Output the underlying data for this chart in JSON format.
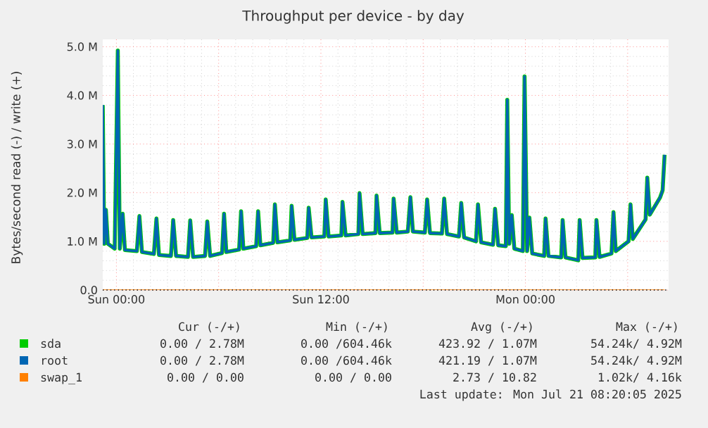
{
  "chart_data": {
    "type": "line",
    "title": "Throughput per device - by day",
    "ylabel": "Bytes/second read (-) / write (+)",
    "xlim": [
      "2025-07-19T23:12",
      "2025-07-21T08:24"
    ],
    "ylim": [
      0,
      5.15
    ],
    "xticks": [
      {
        "value": "2025-07-20T00:00",
        "label": "Sun 00:00"
      },
      {
        "value": "2025-07-20T06:00",
        "label": null
      },
      {
        "value": "2025-07-20T12:00",
        "label": "Sun 12:00"
      },
      {
        "value": "2025-07-20T18:00",
        "label": null
      },
      {
        "value": "2025-07-21T00:00",
        "label": "Mon 00:00"
      },
      {
        "value": "2025-07-21T06:00",
        "label": null
      }
    ],
    "yticks": [
      {
        "value": 0,
        "label": "0.0"
      },
      {
        "value": 1,
        "label": "1.0 M"
      },
      {
        "value": 2,
        "label": "2.0 M"
      },
      {
        "value": 3,
        "label": "3.0 M"
      },
      {
        "value": 4,
        "label": "4.0 M"
      },
      {
        "value": 5,
        "label": "5.0 M"
      }
    ],
    "grid": true,
    "legend": "bottom",
    "x": [
      "2025-07-19T23:12",
      "2025-07-19T23:17",
      "2025-07-19T23:23",
      "2025-07-19T23:30",
      "2025-07-19T23:54",
      "2025-07-20T00:05",
      "2025-07-20T00:12",
      "2025-07-20T00:22",
      "2025-07-20T00:30",
      "2025-07-20T01:12",
      "2025-07-20T01:21",
      "2025-07-20T01:30",
      "2025-07-20T02:12",
      "2025-07-20T02:21",
      "2025-07-20T02:30",
      "2025-07-20T03:12",
      "2025-07-20T03:20",
      "2025-07-20T03:30",
      "2025-07-20T04:12",
      "2025-07-20T04:20",
      "2025-07-20T04:30",
      "2025-07-20T05:12",
      "2025-07-20T05:20",
      "2025-07-20T05:30",
      "2025-07-20T06:12",
      "2025-07-20T06:19",
      "2025-07-20T06:27",
      "2025-07-20T07:12",
      "2025-07-20T07:19",
      "2025-07-20T07:27",
      "2025-07-20T08:12",
      "2025-07-20T08:19",
      "2025-07-20T08:27",
      "2025-07-20T09:12",
      "2025-07-20T09:18",
      "2025-07-20T09:27",
      "2025-07-20T10:12",
      "2025-07-20T10:17",
      "2025-07-20T10:27",
      "2025-07-20T11:12",
      "2025-07-20T11:17",
      "2025-07-20T11:27",
      "2025-07-20T12:12",
      "2025-07-20T12:17",
      "2025-07-20T12:27",
      "2025-07-20T13:12",
      "2025-07-20T13:16",
      "2025-07-20T13:27",
      "2025-07-20T14:12",
      "2025-07-20T14:16",
      "2025-07-20T14:27",
      "2025-07-20T15:12",
      "2025-07-20T15:16",
      "2025-07-20T15:27",
      "2025-07-20T16:12",
      "2025-07-20T16:16",
      "2025-07-20T16:27",
      "2025-07-20T17:06",
      "2025-07-20T17:15",
      "2025-07-20T17:24",
      "2025-07-20T18:06",
      "2025-07-20T18:14",
      "2025-07-20T18:24",
      "2025-07-20T19:06",
      "2025-07-20T19:14",
      "2025-07-20T19:24",
      "2025-07-20T20:06",
      "2025-07-20T20:14",
      "2025-07-20T20:24",
      "2025-07-20T21:06",
      "2025-07-20T21:13",
      "2025-07-20T21:24",
      "2025-07-20T22:06",
      "2025-07-20T22:13",
      "2025-07-20T22:24",
      "2025-07-20T22:51",
      "2025-07-20T22:56",
      "2025-07-20T23:03",
      "2025-07-20T23:12",
      "2025-07-20T23:21",
      "2025-07-20T23:51",
      "2025-07-20T23:57",
      "2025-07-21T00:06",
      "2025-07-21T00:14",
      "2025-07-21T00:24",
      "2025-07-21T01:06",
      "2025-07-21T01:11",
      "2025-07-21T01:21",
      "2025-07-21T02:06",
      "2025-07-21T02:11",
      "2025-07-21T02:21",
      "2025-07-21T03:06",
      "2025-07-21T03:11",
      "2025-07-21T03:21",
      "2025-07-21T04:06",
      "2025-07-21T04:10",
      "2025-07-21T04:21",
      "2025-07-21T05:03",
      "2025-07-21T05:10",
      "2025-07-21T05:18",
      "2025-07-21T06:03",
      "2025-07-21T06:10",
      "2025-07-21T06:18",
      "2025-07-21T07:03",
      "2025-07-21T07:09",
      "2025-07-21T07:18",
      "2025-07-21T07:54",
      "2025-07-21T08:03",
      "2025-07-21T08:10"
    ],
    "series": [
      {
        "name": "sda",
        "color": "#00cc00",
        "values": [
          3.8,
          0.95,
          1.65,
          0.95,
          0.85,
          4.92,
          0.85,
          1.57,
          0.82,
          0.8,
          1.52,
          0.78,
          0.74,
          1.47,
          0.72,
          0.7,
          1.44,
          0.7,
          0.68,
          1.43,
          0.68,
          0.7,
          1.41,
          0.7,
          0.76,
          1.57,
          0.78,
          0.83,
          1.62,
          0.85,
          0.9,
          1.62,
          0.92,
          0.97,
          1.76,
          0.98,
          1.02,
          1.73,
          1.03,
          1.07,
          1.69,
          1.08,
          1.1,
          1.86,
          1.1,
          1.12,
          1.81,
          1.12,
          1.15,
          1.99,
          1.15,
          1.17,
          1.94,
          1.17,
          1.18,
          1.88,
          1.18,
          1.2,
          1.91,
          1.2,
          1.18,
          1.86,
          1.17,
          1.16,
          1.88,
          1.15,
          1.1,
          1.79,
          1.08,
          1.0,
          1.76,
          0.98,
          0.93,
          1.67,
          0.92,
          0.9,
          3.91,
          0.95,
          1.54,
          0.85,
          0.8,
          4.39,
          0.8,
          1.49,
          0.75,
          0.7,
          1.47,
          0.7,
          0.67,
          1.44,
          0.67,
          0.61,
          1.44,
          0.66,
          0.67,
          1.44,
          0.68,
          0.75,
          1.6,
          0.8,
          1.0,
          1.76,
          1.05,
          1.45,
          2.31,
          1.55,
          1.9,
          2.05,
          2.78
        ]
      },
      {
        "name": "root",
        "color": "#0066b3",
        "values": [
          3.8,
          0.95,
          1.65,
          0.95,
          0.85,
          4.92,
          0.85,
          1.57,
          0.82,
          0.8,
          1.52,
          0.78,
          0.74,
          1.47,
          0.72,
          0.7,
          1.44,
          0.7,
          0.68,
          1.43,
          0.68,
          0.7,
          1.41,
          0.7,
          0.76,
          1.57,
          0.78,
          0.83,
          1.62,
          0.85,
          0.9,
          1.62,
          0.92,
          0.97,
          1.76,
          0.98,
          1.02,
          1.73,
          1.03,
          1.07,
          1.69,
          1.08,
          1.1,
          1.86,
          1.1,
          1.12,
          1.81,
          1.12,
          1.15,
          1.99,
          1.15,
          1.17,
          1.94,
          1.17,
          1.18,
          1.88,
          1.18,
          1.2,
          1.91,
          1.2,
          1.18,
          1.86,
          1.17,
          1.16,
          1.88,
          1.15,
          1.1,
          1.79,
          1.08,
          1.0,
          1.76,
          0.98,
          0.93,
          1.67,
          0.92,
          0.9,
          3.91,
          0.95,
          1.54,
          0.85,
          0.8,
          4.39,
          0.8,
          1.49,
          0.75,
          0.7,
          1.47,
          0.7,
          0.67,
          1.44,
          0.67,
          0.61,
          1.44,
          0.66,
          0.67,
          1.44,
          0.68,
          0.75,
          1.6,
          0.8,
          1.0,
          1.76,
          1.05,
          1.45,
          2.31,
          1.55,
          1.9,
          2.05,
          2.78
        ]
      },
      {
        "name": "swap_1",
        "color": "#ff8000",
        "x": [
          "2025-07-19T23:12",
          "2025-07-21T08:10"
        ],
        "values": [
          0,
          0
        ]
      }
    ],
    "annotations": [
      "Cur (-/+)",
      "Min (-/+)",
      "Avg (-/+)",
      "Max (-/+)",
      "0.00 / 2.78M",
      "0.00 /604.46k",
      "423.92 / 1.07M",
      "54.24k/ 4.92M",
      "0.00 / 2.78M",
      "0.00 /604.46k",
      "421.19 / 1.07M",
      "54.24k/ 4.92M",
      "0.00 / 0.00",
      "0.00 / 0.00",
      "2.73 / 10.82",
      "1.02k/ 4.16k",
      "Last update: Mon Jul 21 08:20:05 2025"
    ]
  }
}
